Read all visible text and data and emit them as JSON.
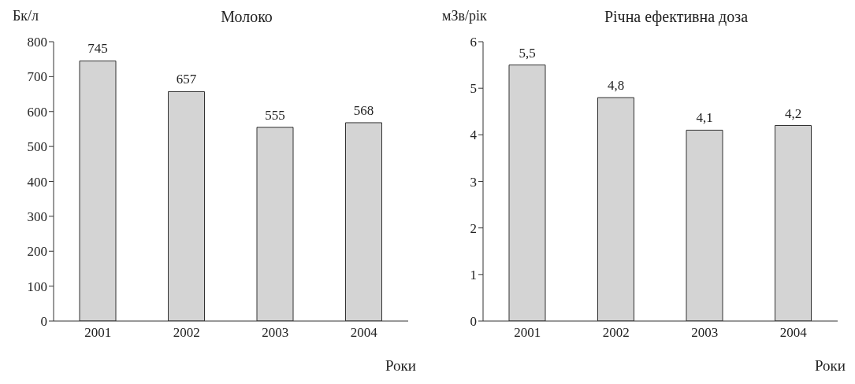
{
  "chart_data": [
    {
      "type": "bar",
      "title": "Молоко",
      "ylabel": "Бк/л",
      "xlabel": "Роки",
      "categories": [
        "2001",
        "2002",
        "2003",
        "2004"
      ],
      "values": [
        745,
        657,
        555,
        568
      ],
      "color": "#d4d4d4",
      "ylim": [
        0,
        800
      ],
      "yticks": [
        0,
        100,
        200,
        300,
        400,
        500,
        600,
        700,
        800
      ],
      "grid": false,
      "legend": false,
      "data_labels": true
    },
    {
      "type": "bar",
      "title": "Річна ефективна доза",
      "ylabel": "мЗв/рік",
      "xlabel": "Роки",
      "categories": [
        "2001",
        "2002",
        "2003",
        "2004"
      ],
      "values": [
        5.5,
        4.8,
        4.1,
        4.2
      ],
      "value_labels": [
        "5,5",
        "4,8",
        "4,1",
        "4,2"
      ],
      "color": "#d4d4d4",
      "ylim": [
        0,
        6
      ],
      "yticks": [
        0,
        1,
        2,
        3,
        4,
        5,
        6
      ],
      "grid": false,
      "legend": false
    }
  ]
}
